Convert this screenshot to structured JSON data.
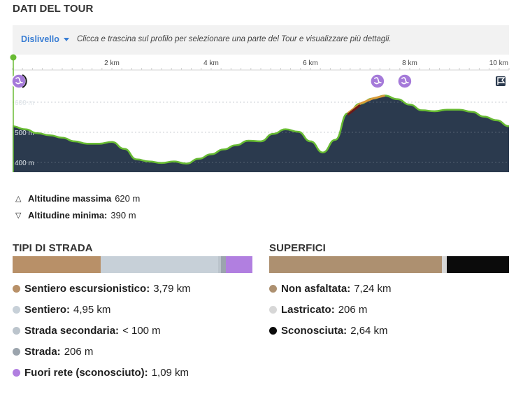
{
  "header": {
    "title": "DATI DEL TOUR"
  },
  "toolbar": {
    "dropdown_label": "Dislivello",
    "hint": "Clicca e trascina sul profilo per selezionare una parte del Tour e visualizzare più dettagli."
  },
  "chart_data": {
    "type": "area",
    "x_ticks": [
      "2 km",
      "4 km",
      "6 km",
      "8 km",
      "10 km"
    ],
    "y_ticks": [
      "400 m",
      "500 m",
      "600 m"
    ],
    "xlim": [
      0,
      10
    ],
    "ylim": [
      380,
      720
    ],
    "x": [
      0,
      0.25,
      0.5,
      0.75,
      1,
      1.25,
      1.5,
      1.75,
      2,
      2.25,
      2.5,
      2.75,
      3,
      3.25,
      3.5,
      3.75,
      4,
      4.25,
      4.5,
      4.75,
      5,
      5.25,
      5.5,
      5.75,
      6,
      6.25,
      6.5,
      6.75,
      7,
      7.25,
      7.5,
      7.75,
      8,
      8.25,
      8.5,
      8.75,
      9,
      9.25,
      9.5,
      9.75,
      10
    ],
    "y": [
      520,
      510,
      497,
      490,
      482,
      470,
      462,
      462,
      468,
      445,
      410,
      403,
      398,
      403,
      396,
      412,
      427,
      443,
      457,
      472,
      470,
      495,
      510,
      502,
      470,
      433,
      475,
      563,
      595,
      612,
      622,
      610,
      592,
      573,
      570,
      575,
      575,
      568,
      552,
      540,
      520
    ],
    "markers": [
      {
        "x": 0,
        "icon": "start-pin-icon"
      },
      {
        "x": 0.1,
        "icon": "waypoint-icon"
      },
      {
        "x": 7.35,
        "icon": "waypoint-icon"
      },
      {
        "x": 7.9,
        "icon": "waypoint-icon"
      },
      {
        "x": 10,
        "icon": "finish-flag-icon"
      }
    ],
    "colors": {
      "fill": "#2b3a4e",
      "outline": "#68bb33",
      "steep": "#d89a3a",
      "steepest": "#6b1a1a"
    }
  },
  "altitude": {
    "max_label": "Altitudine massima",
    "max_value": "620 m",
    "min_label": "Altitudine minima:",
    "min_value": "390 m"
  },
  "road_types": {
    "title": "TIPI DI STRADA",
    "items": [
      {
        "name": "Sentiero escursionistico:",
        "value": "3,79 km",
        "color": "#b89068",
        "share": 0.18
      },
      {
        "name": "Sentiero:",
        "value": "4,95 km",
        "color": "#c7d0d8",
        "share": 0.24
      },
      {
        "name": "Strada secondaria:",
        "value": "< 100 m",
        "color": "#bbc4cc",
        "share": 0.005
      },
      {
        "name": "Strada:",
        "value": "206 m",
        "color": "#9ba4ad",
        "share": 0.01
      },
      {
        "name": "Fuori rete (sconosciuto):",
        "value": "1,09 km",
        "color": "#b17fe0",
        "share": 0.055
      }
    ]
  },
  "surfaces": {
    "title": "SUPERFICI",
    "items": [
      {
        "name": "Non asfaltata:",
        "value": "7,24 km",
        "color": "#ad9070",
        "share": 0.35
      },
      {
        "name": "Lastricato:",
        "value": "206 m",
        "color": "#d7d7d7",
        "share": 0.01
      },
      {
        "name": "Sconosciuta:",
        "value": "2,64 km",
        "color": "#0b0b0b",
        "share": 0.127
      }
    ]
  }
}
